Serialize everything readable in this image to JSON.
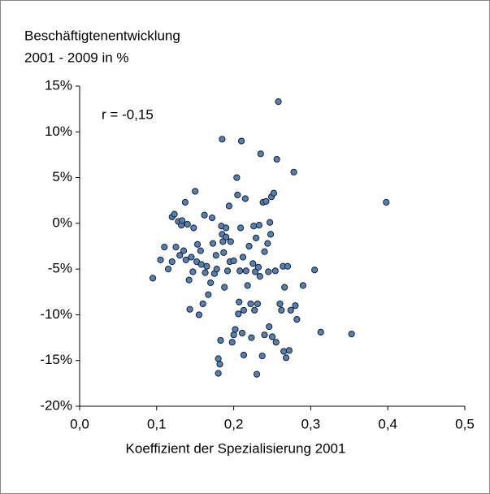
{
  "chart_data": {
    "type": "scatter",
    "y_label_lines": [
      "Beschäftigtenentwicklung",
      "2001 - 2009 in %"
    ],
    "x_label": "Koeffizient der Spezialisierung 2001",
    "annotation": "r = -0,15",
    "color": "#4f81bd",
    "edge_color": "#1f1f1f",
    "grid": false,
    "xlim": [
      0,
      0.5
    ],
    "ylim": [
      -20,
      15
    ],
    "xticks": [
      {
        "value": 0,
        "label": "0,0"
      },
      {
        "value": 0.1,
        "label": "0,1"
      },
      {
        "value": 0.2,
        "label": "0,2"
      },
      {
        "value": 0.3,
        "label": "0,3"
      },
      {
        "value": 0.4,
        "label": "0,4"
      },
      {
        "value": 0.5,
        "label": "0,5"
      }
    ],
    "yticks": [
      {
        "value": 15,
        "label": "15%"
      },
      {
        "value": 10,
        "label": "10%"
      },
      {
        "value": 5,
        "label": "5%"
      },
      {
        "value": 0,
        "label": "0%"
      },
      {
        "value": -5,
        "label": "-5%"
      },
      {
        "value": -10,
        "label": "-10%"
      },
      {
        "value": -15,
        "label": "-15%"
      },
      {
        "value": -20,
        "label": "-20%"
      }
    ],
    "x": [
      0.095,
      0.105,
      0.11,
      0.115,
      0.12,
      0.12,
      0.123,
      0.125,
      0.128,
      0.13,
      0.132,
      0.133,
      0.135,
      0.137,
      0.138,
      0.14,
      0.142,
      0.143,
      0.145,
      0.147,
      0.148,
      0.15,
      0.152,
      0.153,
      0.155,
      0.157,
      0.158,
      0.16,
      0.162,
      0.163,
      0.165,
      0.167,
      0.17,
      0.172,
      0.173,
      0.175,
      0.177,
      0.178,
      0.18,
      0.18,
      0.182,
      0.183,
      0.184,
      0.185,
      0.185,
      0.186,
      0.187,
      0.188,
      0.19,
      0.19,
      0.192,
      0.194,
      0.195,
      0.196,
      0.198,
      0.2,
      0.2,
      0.202,
      0.204,
      0.205,
      0.206,
      0.207,
      0.208,
      0.209,
      0.21,
      0.211,
      0.212,
      0.213,
      0.213,
      0.215,
      0.216,
      0.218,
      0.22,
      0.222,
      0.223,
      0.225,
      0.226,
      0.227,
      0.228,
      0.229,
      0.23,
      0.231,
      0.232,
      0.233,
      0.234,
      0.235,
      0.237,
      0.238,
      0.24,
      0.24,
      0.242,
      0.244,
      0.245,
      0.246,
      0.247,
      0.248,
      0.249,
      0.25,
      0.252,
      0.254,
      0.255,
      0.256,
      0.258,
      0.26,
      0.262,
      0.264,
      0.265,
      0.266,
      0.268,
      0.27,
      0.272,
      0.274,
      0.278,
      0.28,
      0.282,
      0.29,
      0.305,
      0.313,
      0.353,
      0.398
    ],
    "values": [
      -6,
      -4,
      -2.6,
      -5,
      -4.2,
      0.7,
      1,
      -2.6,
      0.2,
      -3.5,
      -0.2,
      0.3,
      -3,
      2.3,
      -4,
      -0.1,
      -6.2,
      -9.4,
      -3.7,
      -5.3,
      -0.5,
      3.5,
      -4.2,
      -2.3,
      -10,
      -3,
      -4.5,
      -8.8,
      0.9,
      -5.4,
      -4.7,
      -7.8,
      -6.5,
      0.6,
      -2.2,
      -5.5,
      -3.5,
      -5,
      -16.4,
      -14.8,
      -15.4,
      -12.8,
      -0.3,
      9.2,
      -1.2,
      -2,
      -3.2,
      -7,
      -1.5,
      -0.5,
      -5.2,
      1.9,
      -4.2,
      -2,
      -13,
      -4.1,
      -12.2,
      -11.6,
      5,
      3.1,
      -9.9,
      -8.6,
      -5.2,
      -0.5,
      9,
      -12,
      -3.7,
      -9.5,
      -14.4,
      2.7,
      -5.2,
      -6.8,
      -2.5,
      -8.8,
      -12.5,
      -4.4,
      -0.3,
      -9.5,
      -5.3,
      -1.6,
      -16.5,
      -8.8,
      -4.8,
      -0.2,
      -5.8,
      7.6,
      -14.5,
      2.3,
      -3.1,
      -12.2,
      2.4,
      -2.2,
      -5.3,
      -11.3,
      0.1,
      -1.2,
      2.9,
      -12.4,
      3.3,
      -5.2,
      -13,
      7,
      13.3,
      -8.8,
      -9.5,
      -4.7,
      -14,
      -7,
      -14.7,
      -4.7,
      -13.9,
      -9.5,
      5.6,
      -9,
      -10.5,
      -6.8,
      -5.1,
      -11.9,
      -12.1,
      2.3
    ]
  }
}
